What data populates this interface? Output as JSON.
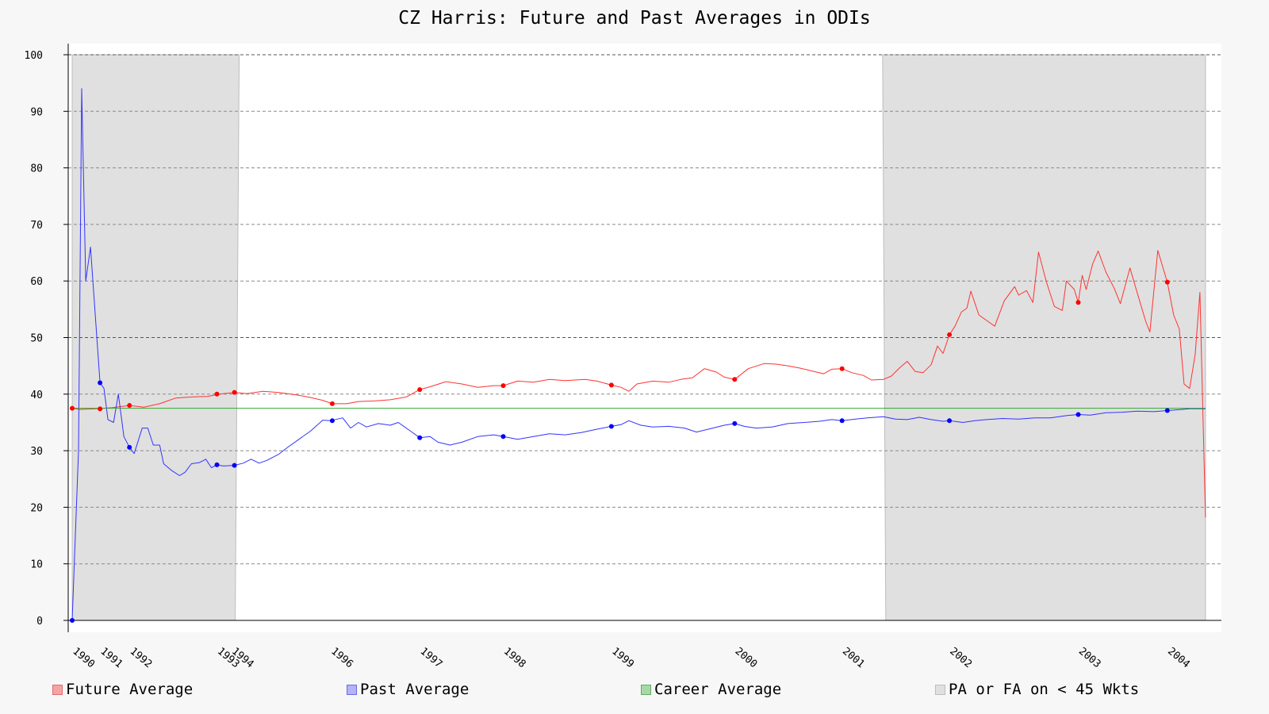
{
  "chart_data": {
    "type": "line",
    "title": "CZ Harris: Future and Past Averages in ODIs",
    "xlabel": "",
    "ylabel": "",
    "ylim": [
      0,
      100
    ],
    "yticks": [
      0,
      10,
      20,
      30,
      40,
      50,
      60,
      70,
      80,
      90,
      100
    ],
    "xlim": [
      1989.95,
      2004.45
    ],
    "x_tick_labels": [
      {
        "x": 1990.0,
        "label": "1990"
      },
      {
        "x": 1990.35,
        "label": "1991"
      },
      {
        "x": 1990.72,
        "label": "1992"
      },
      {
        "x": 1991.82,
        "label": "1993"
      },
      {
        "x": 1992.0,
        "label": "1994"
      },
      {
        "x": 1993.25,
        "label": "1996"
      },
      {
        "x": 1994.37,
        "label": "1997"
      },
      {
        "x": 1995.42,
        "label": "1998"
      },
      {
        "x": 1996.78,
        "label": "1999"
      },
      {
        "x": 1998.33,
        "label": "2000"
      },
      {
        "x": 1999.68,
        "label": "2001"
      },
      {
        "x": 2001.03,
        "label": "2002"
      },
      {
        "x": 2002.65,
        "label": "2003"
      },
      {
        "x": 2003.77,
        "label": "2004"
      }
    ],
    "grid": true,
    "legend_position": "bottom",
    "shaded_regions": [
      {
        "name": "PA or FA on < 45 Wkts",
        "x_bottom": [
          1990.0,
          1992.05
        ],
        "x_top": [
          1990.0,
          1992.1
        ]
      },
      {
        "name": "PA or FA on < 45 Wkts",
        "x_bottom": [
          2000.23,
          2004.25
        ],
        "x_top": [
          2000.19,
          2004.25
        ]
      }
    ],
    "series": [
      {
        "name": "Future Average",
        "color": "#ff3333",
        "points": [
          [
            1990.0,
            37.5
          ],
          [
            1990.1,
            37.3
          ],
          [
            1990.3,
            37.4
          ],
          [
            1990.5,
            37.6
          ],
          [
            1990.72,
            38.0
          ],
          [
            1990.9,
            37.7
          ],
          [
            1991.1,
            38.3
          ],
          [
            1991.3,
            39.3
          ],
          [
            1991.5,
            39.5
          ],
          [
            1991.7,
            39.6
          ],
          [
            1991.85,
            40.0
          ],
          [
            1992.04,
            40.3
          ],
          [
            1992.2,
            40.1
          ],
          [
            1992.4,
            40.5
          ],
          [
            1992.6,
            40.3
          ],
          [
            1992.85,
            39.8
          ],
          [
            1993.0,
            39.4
          ],
          [
            1993.15,
            38.9
          ],
          [
            1993.27,
            38.3
          ],
          [
            1993.45,
            38.3
          ],
          [
            1993.6,
            38.7
          ],
          [
            1993.8,
            38.8
          ],
          [
            1994.0,
            39.0
          ],
          [
            1994.2,
            39.5
          ],
          [
            1994.37,
            40.8
          ],
          [
            1994.5,
            41.3
          ],
          [
            1994.7,
            42.2
          ],
          [
            1994.9,
            41.8
          ],
          [
            1995.1,
            41.2
          ],
          [
            1995.3,
            41.5
          ],
          [
            1995.42,
            41.5
          ],
          [
            1995.6,
            42.3
          ],
          [
            1995.8,
            42.1
          ],
          [
            1996.0,
            42.6
          ],
          [
            1996.2,
            42.4
          ],
          [
            1996.45,
            42.6
          ],
          [
            1996.6,
            42.3
          ],
          [
            1996.78,
            41.6
          ],
          [
            1996.9,
            41.2
          ],
          [
            1997.0,
            40.5
          ],
          [
            1997.1,
            41.8
          ],
          [
            1997.3,
            42.3
          ],
          [
            1997.5,
            42.1
          ],
          [
            1997.65,
            42.6
          ],
          [
            1997.8,
            42.9
          ],
          [
            1997.95,
            44.5
          ],
          [
            1998.1,
            43.9
          ],
          [
            1998.2,
            43.0
          ],
          [
            1998.33,
            42.6
          ],
          [
            1998.5,
            44.5
          ],
          [
            1998.7,
            45.4
          ],
          [
            1998.85,
            45.3
          ],
          [
            1999.0,
            45.0
          ],
          [
            1999.15,
            44.6
          ],
          [
            1999.3,
            44.1
          ],
          [
            1999.45,
            43.6
          ],
          [
            1999.55,
            44.4
          ],
          [
            1999.68,
            44.5
          ],
          [
            1999.8,
            43.8
          ],
          [
            1999.95,
            43.3
          ],
          [
            2000.05,
            42.5
          ],
          [
            2000.2,
            42.6
          ],
          [
            2000.3,
            43.2
          ],
          [
            2000.4,
            44.6
          ],
          [
            2000.5,
            45.8
          ],
          [
            2000.6,
            44.0
          ],
          [
            2000.7,
            43.8
          ],
          [
            2000.8,
            45.2
          ],
          [
            2000.88,
            48.5
          ],
          [
            2000.95,
            47.2
          ],
          [
            2001.03,
            50.5
          ],
          [
            2001.1,
            52.0
          ],
          [
            2001.18,
            54.5
          ],
          [
            2001.25,
            55.2
          ],
          [
            2001.3,
            58.2
          ],
          [
            2001.4,
            54.0
          ],
          [
            2001.5,
            53.0
          ],
          [
            2001.6,
            52.0
          ],
          [
            2001.72,
            56.5
          ],
          [
            2001.85,
            59.0
          ],
          [
            2001.9,
            57.5
          ],
          [
            2002.0,
            58.3
          ],
          [
            2002.08,
            56.2
          ],
          [
            2002.15,
            65.1
          ],
          [
            2002.25,
            59.8
          ],
          [
            2002.35,
            55.5
          ],
          [
            2002.45,
            54.8
          ],
          [
            2002.5,
            60.0
          ],
          [
            2002.6,
            58.5
          ],
          [
            2002.65,
            56.2
          ],
          [
            2002.7,
            61.0
          ],
          [
            2002.75,
            58.5
          ],
          [
            2002.83,
            63.0
          ],
          [
            2002.9,
            65.3
          ],
          [
            2003.0,
            61.5
          ],
          [
            2003.1,
            58.8
          ],
          [
            2003.18,
            56.0
          ],
          [
            2003.3,
            62.3
          ],
          [
            2003.4,
            57.5
          ],
          [
            2003.5,
            52.8
          ],
          [
            2003.55,
            51.0
          ],
          [
            2003.65,
            65.4
          ],
          [
            2003.77,
            59.8
          ],
          [
            2003.85,
            54.0
          ],
          [
            2003.92,
            51.5
          ],
          [
            2003.98,
            41.8
          ],
          [
            2004.05,
            41.0
          ],
          [
            2004.12,
            47.0
          ],
          [
            2004.18,
            58.0
          ],
          [
            2004.25,
            18.2
          ]
        ]
      },
      {
        "name": "Past Average",
        "color": "#3333ff",
        "points": [
          [
            1990.0,
            0.0
          ],
          [
            1990.08,
            30.0
          ],
          [
            1990.12,
            94.0
          ],
          [
            1990.17,
            60.0
          ],
          [
            1990.23,
            66.0
          ],
          [
            1990.3,
            52.0
          ],
          [
            1990.35,
            42.0
          ],
          [
            1990.4,
            41.0
          ],
          [
            1990.45,
            35.5
          ],
          [
            1990.52,
            35.0
          ],
          [
            1990.58,
            40.0
          ],
          [
            1990.65,
            32.5
          ],
          [
            1990.72,
            30.6
          ],
          [
            1990.78,
            29.5
          ],
          [
            1990.88,
            34.0
          ],
          [
            1990.95,
            34.0
          ],
          [
            1991.02,
            31.0
          ],
          [
            1991.1,
            31.0
          ],
          [
            1991.15,
            27.7
          ],
          [
            1991.25,
            26.5
          ],
          [
            1991.35,
            25.6
          ],
          [
            1991.42,
            26.2
          ],
          [
            1991.5,
            27.7
          ],
          [
            1991.6,
            27.9
          ],
          [
            1991.68,
            28.5
          ],
          [
            1991.75,
            27.0
          ],
          [
            1991.82,
            27.5
          ],
          [
            1991.9,
            27.3
          ],
          [
            1992.04,
            27.4
          ],
          [
            1992.15,
            27.8
          ],
          [
            1992.25,
            28.5
          ],
          [
            1992.35,
            27.8
          ],
          [
            1992.45,
            28.3
          ],
          [
            1992.6,
            29.4
          ],
          [
            1992.7,
            30.5
          ],
          [
            1992.85,
            32.0
          ],
          [
            1993.0,
            33.5
          ],
          [
            1993.15,
            35.4
          ],
          [
            1993.25,
            35.3
          ],
          [
            1993.4,
            35.8
          ],
          [
            1993.5,
            34.0
          ],
          [
            1993.6,
            35.0
          ],
          [
            1993.7,
            34.2
          ],
          [
            1993.85,
            34.8
          ],
          [
            1994.0,
            34.5
          ],
          [
            1994.1,
            35.0
          ],
          [
            1994.25,
            33.5
          ],
          [
            1994.37,
            32.3
          ],
          [
            1994.5,
            32.5
          ],
          [
            1994.6,
            31.5
          ],
          [
            1994.75,
            31.0
          ],
          [
            1994.9,
            31.5
          ],
          [
            1995.1,
            32.5
          ],
          [
            1995.3,
            32.8
          ],
          [
            1995.42,
            32.5
          ],
          [
            1995.6,
            32.0
          ],
          [
            1995.8,
            32.5
          ],
          [
            1996.0,
            33.0
          ],
          [
            1996.2,
            32.8
          ],
          [
            1996.4,
            33.2
          ],
          [
            1996.6,
            33.8
          ],
          [
            1996.78,
            34.3
          ],
          [
            1996.9,
            34.6
          ],
          [
            1997.0,
            35.3
          ],
          [
            1997.15,
            34.5
          ],
          [
            1997.3,
            34.2
          ],
          [
            1997.5,
            34.3
          ],
          [
            1997.7,
            34.0
          ],
          [
            1997.85,
            33.3
          ],
          [
            1998.0,
            33.8
          ],
          [
            1998.2,
            34.5
          ],
          [
            1998.33,
            34.8
          ],
          [
            1998.45,
            34.3
          ],
          [
            1998.6,
            34.0
          ],
          [
            1998.8,
            34.2
          ],
          [
            1999.0,
            34.8
          ],
          [
            1999.2,
            35.0
          ],
          [
            1999.4,
            35.2
          ],
          [
            1999.55,
            35.5
          ],
          [
            1999.68,
            35.3
          ],
          [
            1999.85,
            35.6
          ],
          [
            2000.0,
            35.8
          ],
          [
            2000.2,
            36.0
          ],
          [
            2000.35,
            35.6
          ],
          [
            2000.5,
            35.5
          ],
          [
            2000.65,
            35.9
          ],
          [
            2000.8,
            35.5
          ],
          [
            2000.95,
            35.2
          ],
          [
            2001.03,
            35.3
          ],
          [
            2001.2,
            35.0
          ],
          [
            2001.35,
            35.3
          ],
          [
            2001.5,
            35.5
          ],
          [
            2001.7,
            35.7
          ],
          [
            2001.9,
            35.6
          ],
          [
            2002.1,
            35.8
          ],
          [
            2002.3,
            35.8
          ],
          [
            2002.5,
            36.2
          ],
          [
            2002.65,
            36.4
          ],
          [
            2002.8,
            36.3
          ],
          [
            2003.0,
            36.7
          ],
          [
            2003.2,
            36.8
          ],
          [
            2003.4,
            37.0
          ],
          [
            2003.6,
            36.9
          ],
          [
            2003.77,
            37.1
          ],
          [
            2003.95,
            37.3
          ],
          [
            2004.05,
            37.4
          ],
          [
            2004.25,
            37.4
          ]
        ]
      },
      {
        "name": "Career Average",
        "color": "#33aa33",
        "points": [
          [
            1990.0,
            37.5
          ],
          [
            2004.25,
            37.5
          ]
        ]
      }
    ],
    "markers": {
      "Future Average": [
        [
          1990.0,
          37.5
        ],
        [
          1990.35,
          37.4
        ],
        [
          1990.72,
          38.0
        ],
        [
          1991.82,
          40.0
        ],
        [
          1992.04,
          40.3
        ],
        [
          1993.27,
          38.3
        ],
        [
          1994.37,
          40.8
        ],
        [
          1995.42,
          41.5
        ],
        [
          1996.78,
          41.6
        ],
        [
          1998.33,
          42.6
        ],
        [
          1999.68,
          44.5
        ],
        [
          2001.03,
          50.5
        ],
        [
          2002.65,
          56.2
        ],
        [
          2003.77,
          59.8
        ]
      ],
      "Past Average": [
        [
          1990.0,
          0.0
        ],
        [
          1990.35,
          42.0
        ],
        [
          1990.72,
          30.6
        ],
        [
          1991.82,
          27.5
        ],
        [
          1992.04,
          27.4
        ],
        [
          1993.27,
          35.3
        ],
        [
          1994.37,
          32.3
        ],
        [
          1995.42,
          32.5
        ],
        [
          1996.78,
          34.3
        ],
        [
          1998.33,
          34.8
        ],
        [
          1999.68,
          35.3
        ],
        [
          2001.03,
          35.3
        ],
        [
          2002.65,
          36.4
        ],
        [
          2003.77,
          37.1
        ]
      ]
    },
    "legend": [
      {
        "label": "Future Average",
        "fill": "#f4a4a4",
        "stroke": "#e26d6d"
      },
      {
        "label": "Past Average",
        "fill": "#b3b3f5",
        "stroke": "#6c6ce0"
      },
      {
        "label": "Career Average",
        "fill": "#a8d8a8",
        "stroke": "#5faf5f"
      },
      {
        "label": "PA or FA on < 45 Wkts",
        "fill": "#e0e0e0",
        "stroke": "#bdbdbd"
      }
    ]
  }
}
